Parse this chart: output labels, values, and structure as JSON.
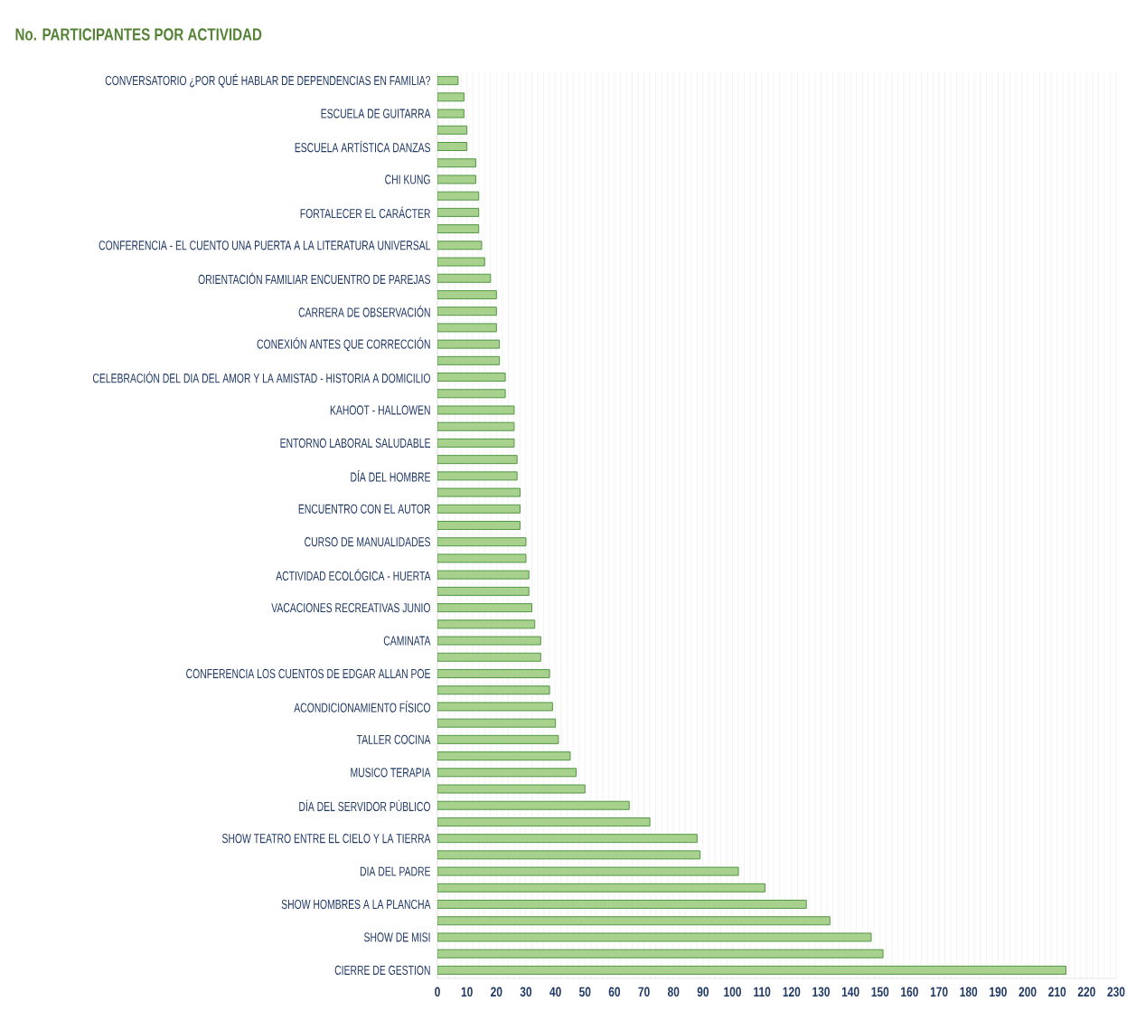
{
  "chart_data": {
    "type": "bar",
    "orientation": "horizontal",
    "title": "No. PARTICIPANTES  POR ACTIVIDAD",
    "categories": [
      "CONVERSATORIO ¿POR QUÉ HABLAR DE DEPENDENCIAS EN FAMILIA?",
      null,
      "ESCUELA DE GUITARRA",
      null,
      "ESCUELA ARTÍSTICA DANZAS",
      null,
      "CHI KUNG",
      null,
      "FORTALECER EL CARÁCTER",
      null,
      "CONFERENCIA - EL CUENTO UNA PUERTA A LA LITERATURA UNIVERSAL",
      null,
      "ORIENTACIÓN FAMILIAR ENCUENTRO DE PAREJAS",
      null,
      "CARRERA DE OBSERVACIÓN",
      null,
      "CONEXIÓN ANTES QUE CORRECCIÓN",
      null,
      "CELEBRACIÓN DEL DIA DEL AMOR Y LA AMISTAD - HISTORIA A DOMICILIO",
      null,
      "KAHOOT - HALLOWEN",
      null,
      "ENTORNO LABORAL SALUDABLE",
      null,
      "DÍA DEL HOMBRE",
      null,
      "ENCUENTRO CON EL AUTOR",
      null,
      "CURSO DE MANUALIDADES",
      null,
      "ACTIVIDAD ECOLÓGICA - HUERTA",
      null,
      "VACACIONES RECREATIVAS JUNIO",
      null,
      "CAMINATA",
      null,
      "CONFERENCIA LOS CUENTOS DE EDGAR ALLAN POE",
      null,
      "ACONDICIONAMIENTO FÍSICO",
      null,
      "TALLER COCINA",
      null,
      "MUSICO TERAPIA",
      null,
      "DÍA DEL SERVIDOR PÚBLICO",
      null,
      "SHOW TEATRO ENTRE EL CIELO Y LA TIERRA",
      null,
      "DIA DEL PADRE",
      null,
      "SHOW HOMBRES A LA PLANCHA",
      null,
      "SHOW DE MISI",
      null,
      "CIERRE DE GESTION"
    ],
    "values": [
      7,
      9,
      9,
      10,
      10,
      13,
      13,
      14,
      14,
      14,
      15,
      16,
      18,
      20,
      20,
      20,
      21,
      21,
      23,
      23,
      26,
      26,
      26,
      27,
      27,
      28,
      28,
      28,
      30,
      30,
      31,
      31,
      32,
      33,
      35,
      35,
      38,
      38,
      39,
      40,
      41,
      45,
      47,
      50,
      65,
      72,
      88,
      89,
      102,
      111,
      125,
      133,
      147,
      151,
      213
    ],
    "color": "#a9d18e",
    "xlim": [
      0,
      230
    ],
    "xticks": [
      0,
      10,
      20,
      30,
      40,
      50,
      60,
      70,
      80,
      90,
      100,
      110,
      120,
      130,
      140,
      150,
      160,
      170,
      180,
      190,
      200,
      210,
      220,
      230
    ],
    "grid": "x"
  }
}
